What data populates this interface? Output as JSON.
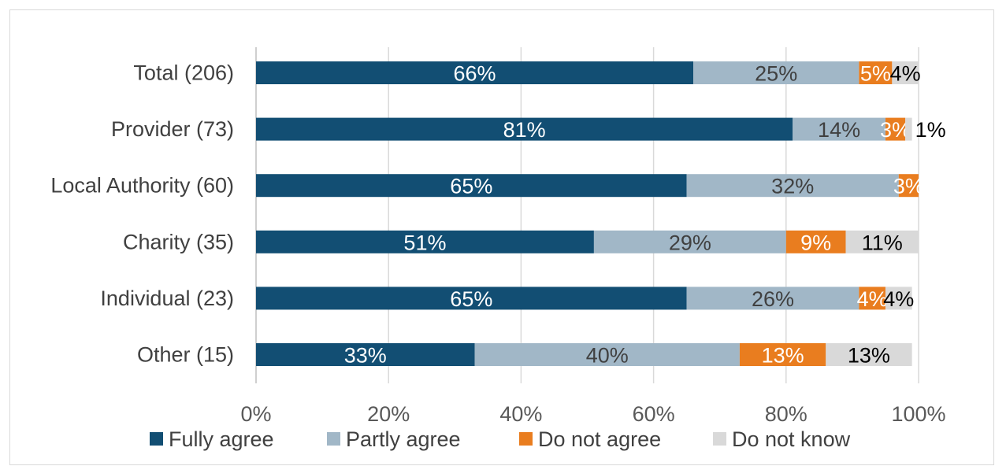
{
  "chart_data": {
    "type": "bar",
    "orientation": "horizontal",
    "stacked": true,
    "categories": [
      "Total (206)",
      "Provider (73)",
      "Local Authority (60)",
      "Charity (35)",
      "Individual (23)",
      "Other (15)"
    ],
    "series": [
      {
        "name": "Fully agree",
        "color": "#124e73",
        "label_color": "#ffffff",
        "values": [
          66,
          81,
          65,
          51,
          65,
          33
        ]
      },
      {
        "name": "Partly agree",
        "color": "#a1b7c7",
        "label_color": "#404040",
        "values": [
          25,
          14,
          32,
          29,
          26,
          40
        ]
      },
      {
        "name": "Do not agree",
        "color": "#e97d1f",
        "label_color": "#ffffff",
        "values": [
          5,
          3,
          3,
          9,
          4,
          13
        ]
      },
      {
        "name": "Do not know",
        "color": "#d9d9d9",
        "label_color": "#000000",
        "values": [
          4,
          1,
          0,
          11,
          4,
          13
        ]
      }
    ],
    "data_labels": [
      [
        "66%",
        "25%",
        "5%",
        "4%"
      ],
      [
        "81%",
        "14%",
        "3%",
        "1%"
      ],
      [
        "65%",
        "32%",
        "3%",
        ""
      ],
      [
        "51%",
        "29%",
        "9%",
        "11%"
      ],
      [
        "65%",
        "26%",
        "4%",
        "4%"
      ],
      [
        "33%",
        "40%",
        "13%",
        "13%"
      ]
    ],
    "x_ticks": [
      "0%",
      "20%",
      "40%",
      "60%",
      "80%",
      "100%"
    ],
    "xlim": [
      0,
      100
    ],
    "grid": "vertical",
    "legend_position": "bottom"
  }
}
